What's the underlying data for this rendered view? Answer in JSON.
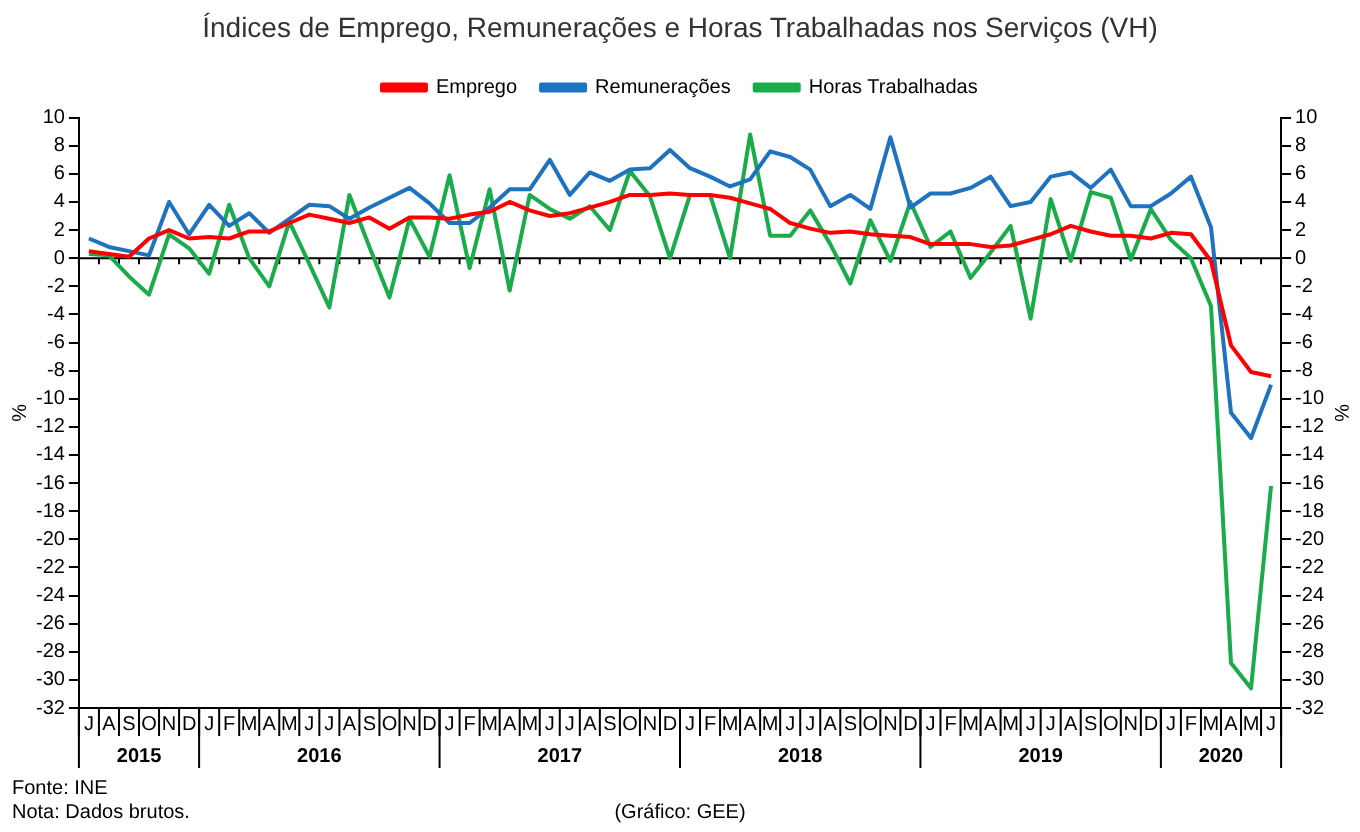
{
  "chart_data": {
    "type": "line",
    "title": "Índices de Emprego, Remunerações e Horas Trabalhadas nos Serviços (VH)",
    "ylabel": "%",
    "y2label": "%",
    "categories": [
      "J",
      "A",
      "S",
      "O",
      "N",
      "D",
      "J",
      "F",
      "M",
      "A",
      "M",
      "J",
      "J",
      "A",
      "S",
      "O",
      "N",
      "D",
      "J",
      "F",
      "M",
      "A",
      "M",
      "J",
      "J",
      "A",
      "S",
      "O",
      "N",
      "D",
      "J",
      "F",
      "M",
      "A",
      "M",
      "J",
      "J",
      "A",
      "S",
      "O",
      "N",
      "D",
      "J",
      "F",
      "M",
      "A",
      "M",
      "J",
      "J",
      "A",
      "S",
      "O",
      "N",
      "D",
      "J",
      "F",
      "M",
      "A",
      "M",
      "J"
    ],
    "series": [
      {
        "name": "Emprego",
        "color": "#ff0000",
        "values": [
          0.5,
          0.3,
          0.1,
          1.4,
          2.0,
          1.4,
          1.5,
          1.4,
          1.9,
          1.9,
          2.5,
          3.1,
          2.8,
          2.5,
          2.9,
          2.1,
          2.9,
          2.9,
          2.8,
          3.1,
          3.3,
          4.0,
          3.4,
          3.0,
          3.2,
          3.6,
          4.0,
          4.5,
          4.5,
          4.6,
          4.5,
          4.5,
          4.3,
          3.9,
          3.5,
          2.5,
          2.1,
          1.8,
          1.9,
          1.7,
          1.6,
          1.5,
          1.0,
          1.0,
          1.0,
          0.8,
          0.9,
          1.3,
          1.7,
          2.3,
          1.9,
          1.6,
          1.6,
          1.4,
          1.8,
          1.7,
          -0.2,
          -6.2,
          -8.1,
          -8.4
        ]
      },
      {
        "name": "Remunerações",
        "color": "#1f72c0",
        "values": [
          1.4,
          0.8,
          0.5,
          0.2,
          4.0,
          1.7,
          3.8,
          2.3,
          3.2,
          1.8,
          2.8,
          3.8,
          3.7,
          2.8,
          3.6,
          4.3,
          5.0,
          3.9,
          2.5,
          2.5,
          3.6,
          4.9,
          4.9,
          7.0,
          4.5,
          6.1,
          5.5,
          6.3,
          6.4,
          7.7,
          6.4,
          5.8,
          5.1,
          5.6,
          7.6,
          7.2,
          6.3,
          3.7,
          4.5,
          3.5,
          8.6,
          3.6,
          4.6,
          4.6,
          5.0,
          5.8,
          3.7,
          4.0,
          5.8,
          6.1,
          5.0,
          6.3,
          3.7,
          3.7,
          4.6,
          5.8,
          2.2,
          -11.0,
          -12.8,
          -9.0
        ]
      },
      {
        "name": "Horas Trabalhadas",
        "color": "#1aab4a",
        "values": [
          0.3,
          0.2,
          -1.3,
          -2.6,
          1.7,
          0.7,
          -1.1,
          3.8,
          0.0,
          -2.0,
          2.6,
          -0.4,
          -3.5,
          4.5,
          0.8,
          -2.8,
          2.8,
          0.1,
          5.9,
          -0.7,
          4.9,
          -2.3,
          4.5,
          3.5,
          2.8,
          3.7,
          2.0,
          6.2,
          4.4,
          0.0,
          4.5,
          4.5,
          0.0,
          8.8,
          1.6,
          1.6,
          3.4,
          1.0,
          -1.8,
          2.7,
          -0.2,
          4.0,
          0.8,
          1.9,
          -1.4,
          0.4,
          2.3,
          -4.3,
          4.2,
          -0.2,
          4.7,
          4.3,
          -0.1,
          3.5,
          1.3,
          0.0,
          -3.4,
          -28.8,
          -30.6,
          -16.2
        ]
      }
    ],
    "ylim": [
      -32,
      10
    ],
    "yticks": [
      -32,
      -30,
      -28,
      -26,
      -24,
      -22,
      -20,
      -18,
      -16,
      -14,
      -12,
      -10,
      -8,
      -6,
      -4,
      -2,
      0,
      2,
      4,
      6,
      8,
      10
    ],
    "y2lim": [
      -32,
      10
    ],
    "y2ticks": [
      -32,
      -30,
      -28,
      -26,
      -24,
      -22,
      -20,
      -18,
      -16,
      -14,
      -12,
      -10,
      -8,
      -6,
      -4,
      -2,
      0,
      2,
      4,
      6,
      8,
      10
    ],
    "ref_lines": [
      {
        "axis": "y",
        "value": 0,
        "color": "#000000"
      }
    ],
    "annotations": [
      "2015",
      "2016",
      "2017",
      "2018",
      "2019",
      "2020",
      "Fonte: INE",
      "Nota: Dados brutos.",
      "(Gráfico: GEE)"
    ],
    "grid": false,
    "legend": "top",
    "marker": "none",
    "line_style": "solid"
  }
}
